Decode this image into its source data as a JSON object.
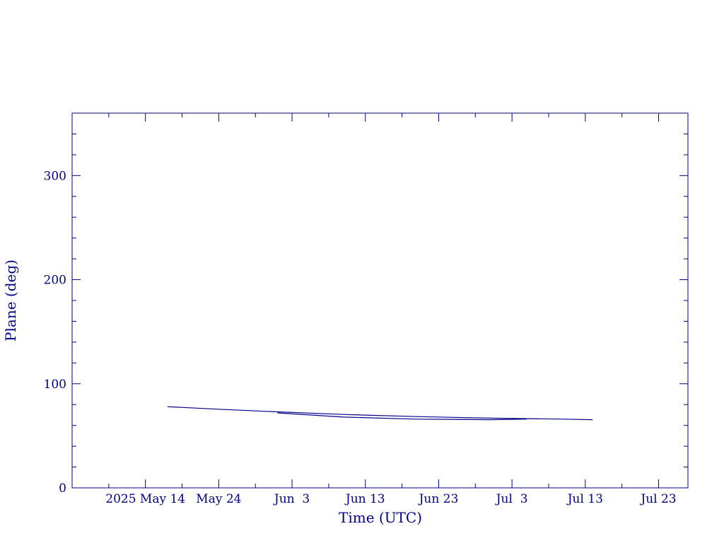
{
  "chart_data": {
    "type": "line",
    "title": "",
    "xlabel": "Time (UTC)",
    "ylabel": "Plane (deg)",
    "color": "#00008b",
    "ylim": [
      0,
      360
    ],
    "xlim": [
      "2025-05-04",
      "2025-07-27"
    ],
    "y_ticks": [
      0,
      100,
      200,
      300
    ],
    "x_tick_labels": [
      "2025 May 14",
      "May 24",
      "Jun  3",
      "Jun 13",
      "Jun 23",
      "Jul  3",
      "Jul 13",
      "Jul 23"
    ],
    "x_tick_dates": [
      "2025-05-14",
      "2025-05-24",
      "2025-06-03",
      "2025-06-13",
      "2025-06-23",
      "2025-07-03",
      "2025-07-13",
      "2025-07-23"
    ],
    "series": [
      {
        "values_x": [
          "2025-05-17",
          "2025-05-24",
          "2025-06-01",
          "2025-06-10",
          "2025-06-20",
          "2025-06-30",
          "2025-07-10",
          "2025-07-14"
        ],
        "values_y": [
          78,
          75.5,
          73,
          70.5,
          68.5,
          67,
          66,
          65.5
        ]
      },
      {
        "values_x": [
          "2025-06-01",
          "2025-06-10",
          "2025-06-20",
          "2025-06-30",
          "2025-07-05"
        ],
        "values_y": [
          72,
          68,
          66,
          65.5,
          66
        ]
      }
    ]
  }
}
